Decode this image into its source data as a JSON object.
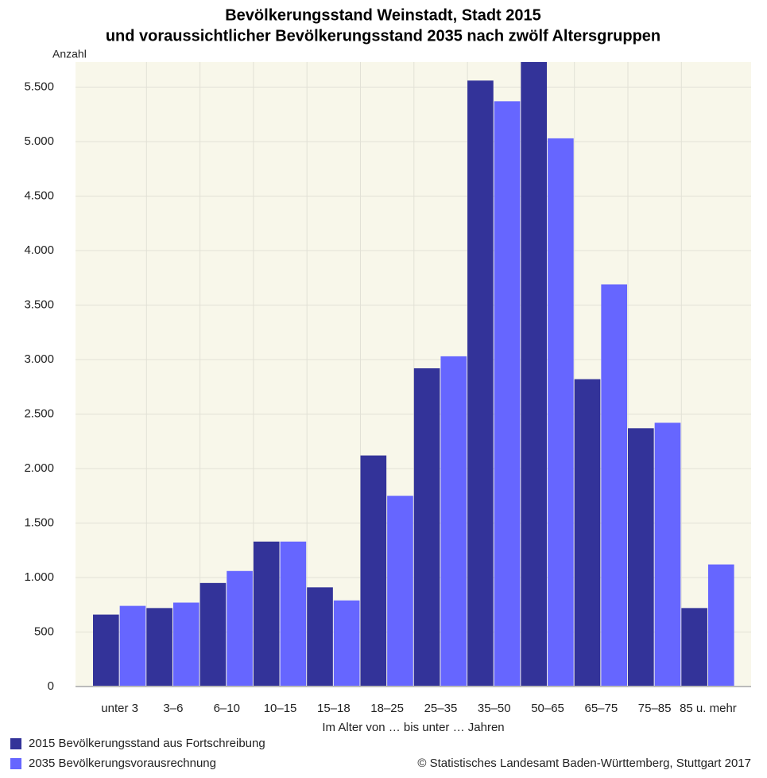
{
  "chart_data": {
    "type": "bar",
    "title_lines": [
      "Bevölkerungsstand Weinstadt, Stadt 2015",
      "und voraussichtlicher Bevölkerungsstand 2035 nach zwölf Altersgruppen"
    ],
    "y_label": "Anzahl",
    "x_label": "Im Alter von … bis unter … Jahren",
    "source": "© Statistisches Landesamt Baden-Württemberg, Stuttgart 2017",
    "categories": [
      "unter 3",
      "3–6",
      "6–10",
      "10–15",
      "15–18",
      "18–25",
      "25–35",
      "35–50",
      "50–65",
      "65–75",
      "75–85",
      "85 u. mehr"
    ],
    "series": [
      {
        "name": "2015 Bevölkerungsstand aus Fortschreibung",
        "color": "#333399",
        "values": [
          660,
          720,
          950,
          1330,
          910,
          2120,
          2920,
          5560,
          5730,
          2820,
          2370,
          720
        ]
      },
      {
        "name": "2035 Bevölkerungsvorausrechnung",
        "color": "#6666ff",
        "values": [
          740,
          770,
          1060,
          1330,
          790,
          1750,
          3030,
          5370,
          5030,
          3690,
          2420,
          1120
        ]
      }
    ],
    "ylim": [
      0,
      5730
    ],
    "yticks": [
      0,
      500,
      {
        "value": 1000,
        "label": "1.000"
      },
      {
        "value": 1500,
        "label": "1.500"
      },
      {
        "value": 2000,
        "label": "2.000"
      },
      {
        "value": 2500,
        "label": "2.500"
      },
      {
        "value": 3000,
        "label": "3.000"
      },
      {
        "value": 3500,
        "label": "3.500"
      },
      {
        "value": 4000,
        "label": "4.000"
      },
      {
        "value": 4500,
        "label": "4.500"
      },
      {
        "value": 5000,
        "label": "5.000"
      },
      {
        "value": 5500,
        "label": "5.500"
      }
    ],
    "grid": true,
    "legend": "bottom-left"
  }
}
